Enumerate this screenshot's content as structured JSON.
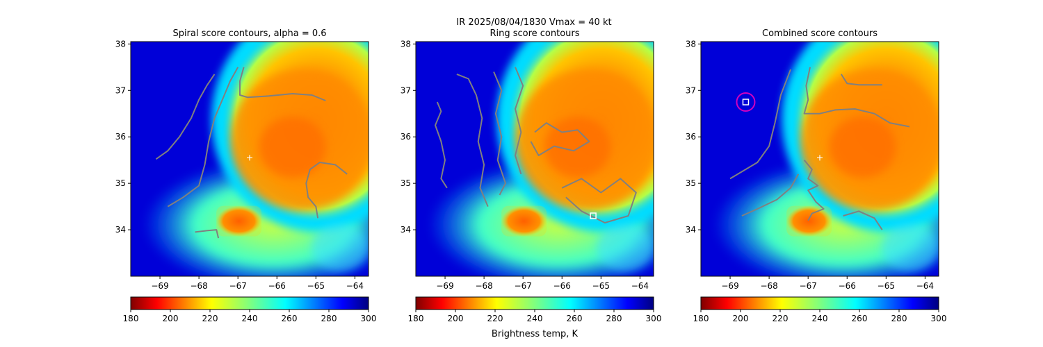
{
  "suptitle_line1": "IR  2025/08/04/1830    Vmax = 40 kt",
  "colorbar_label": "Brightness temp, K",
  "chart_data": [
    {
      "type": "heatmap",
      "title": "Spiral score contours, alpha =  0.6",
      "x_ticks": [
        -69,
        -68,
        -67,
        -66,
        -65,
        -64
      ],
      "y_ticks": [
        34,
        35,
        36,
        37,
        38
      ],
      "xlim": [
        -69.75,
        -63.65
      ],
      "ylim": [
        33.0,
        38.05
      ],
      "colorbar": {
        "ticks": [
          180,
          200,
          220,
          240,
          260,
          280,
          300
        ],
        "range": [
          180,
          300
        ],
        "colormap": "jet_r"
      },
      "center_marker": {
        "lon": -66.7,
        "lat": 35.55,
        "symbol": "+"
      },
      "contour_color": "#808080",
      "contours": [
        [
          [
            -69.1,
            35.52
          ],
          [
            -68.8,
            35.7
          ],
          [
            -68.5,
            36.0
          ],
          [
            -68.2,
            36.4
          ],
          [
            -68.0,
            36.8
          ],
          [
            -67.8,
            37.1
          ],
          [
            -67.6,
            37.35
          ]
        ],
        [
          [
            -68.8,
            34.5
          ],
          [
            -68.4,
            34.7
          ],
          [
            -68.0,
            34.95
          ],
          [
            -67.85,
            35.4
          ],
          [
            -67.75,
            35.9
          ],
          [
            -67.6,
            36.4
          ],
          [
            -67.4,
            36.8
          ],
          [
            -67.2,
            37.2
          ],
          [
            -67.0,
            37.5
          ]
        ],
        [
          [
            -66.85,
            37.5
          ],
          [
            -66.95,
            37.2
          ],
          [
            -66.95,
            36.9
          ],
          [
            -66.75,
            36.85
          ],
          [
            -66.2,
            36.88
          ],
          [
            -65.6,
            36.93
          ],
          [
            -65.1,
            36.9
          ],
          [
            -64.75,
            36.78
          ]
        ],
        [
          [
            -64.2,
            35.2
          ],
          [
            -64.5,
            35.4
          ],
          [
            -64.9,
            35.45
          ],
          [
            -65.15,
            35.3
          ],
          [
            -65.25,
            35.0
          ],
          [
            -65.2,
            34.7
          ],
          [
            -65.0,
            34.5
          ],
          [
            -64.95,
            34.25
          ]
        ],
        [
          [
            -68.1,
            33.95
          ],
          [
            -67.8,
            33.98
          ],
          [
            -67.55,
            34.0
          ],
          [
            -67.5,
            33.82
          ]
        ]
      ]
    },
    {
      "type": "heatmap",
      "title": "Ring score contours",
      "x_ticks": [
        -69,
        -68,
        -67,
        -66,
        -65,
        -64
      ],
      "y_ticks": [
        34,
        35,
        36,
        37,
        38
      ],
      "xlim": [
        -69.75,
        -63.65
      ],
      "ylim": [
        33.0,
        38.05
      ],
      "colorbar": {
        "ticks": [
          180,
          200,
          220,
          240,
          260,
          280,
          300
        ],
        "range": [
          180,
          300
        ],
        "colormap": "jet_r"
      },
      "square_marker": {
        "lon": -65.2,
        "lat": 34.3
      },
      "contour_color": "#808080",
      "contours": [
        [
          [
            -69.2,
            36.75
          ],
          [
            -69.1,
            36.55
          ],
          [
            -69.25,
            36.25
          ],
          [
            -69.1,
            35.9
          ],
          [
            -69.0,
            35.5
          ],
          [
            -69.1,
            35.1
          ],
          [
            -68.95,
            34.9
          ]
        ],
        [
          [
            -68.7,
            37.35
          ],
          [
            -68.4,
            37.25
          ],
          [
            -68.2,
            36.9
          ],
          [
            -68.05,
            36.4
          ],
          [
            -68.15,
            35.9
          ],
          [
            -68.0,
            35.4
          ],
          [
            -68.1,
            34.9
          ],
          [
            -67.9,
            34.5
          ]
        ],
        [
          [
            -67.75,
            37.4
          ],
          [
            -67.55,
            37.0
          ],
          [
            -67.7,
            36.5
          ],
          [
            -67.55,
            36.0
          ],
          [
            -67.65,
            35.5
          ],
          [
            -67.45,
            35.0
          ],
          [
            -67.6,
            34.75
          ]
        ],
        [
          [
            -67.2,
            37.5
          ],
          [
            -67.0,
            37.1
          ],
          [
            -67.2,
            36.6
          ],
          [
            -67.05,
            36.1
          ],
          [
            -67.2,
            35.6
          ],
          [
            -67.05,
            35.2
          ]
        ],
        [
          [
            -66.7,
            36.1
          ],
          [
            -66.4,
            36.3
          ],
          [
            -66.0,
            36.1
          ],
          [
            -65.6,
            36.15
          ],
          [
            -65.3,
            35.9
          ],
          [
            -65.7,
            35.7
          ],
          [
            -66.2,
            35.8
          ],
          [
            -66.6,
            35.6
          ],
          [
            -66.8,
            35.9
          ]
        ],
        [
          [
            -66.0,
            34.9
          ],
          [
            -65.5,
            35.1
          ],
          [
            -65.0,
            34.8
          ],
          [
            -64.5,
            35.1
          ],
          [
            -64.1,
            34.8
          ],
          [
            -64.3,
            34.3
          ],
          [
            -64.9,
            34.15
          ],
          [
            -65.5,
            34.4
          ],
          [
            -65.9,
            34.7
          ]
        ]
      ]
    },
    {
      "type": "heatmap",
      "title": "Combined score contours",
      "x_ticks": [
        -69,
        -68,
        -67,
        -66,
        -65,
        -64
      ],
      "y_ticks": [
        34,
        35,
        36,
        37,
        38
      ],
      "xlim": [
        -69.75,
        -63.65
      ],
      "ylim": [
        33.0,
        38.05
      ],
      "colorbar": {
        "ticks": [
          180,
          200,
          220,
          240,
          260,
          280,
          300
        ],
        "range": [
          180,
          300
        ],
        "colormap": "jet_r"
      },
      "center_marker": {
        "lon": -66.7,
        "lat": 35.55,
        "symbol": "+"
      },
      "square_marker": {
        "lon": -68.6,
        "lat": 36.75
      },
      "circle_marker": {
        "lon": -68.6,
        "lat": 36.75,
        "color": "#d000c0"
      },
      "contour_color": "#808080",
      "contours": [
        [
          [
            -69.0,
            35.1
          ],
          [
            -68.7,
            35.25
          ],
          [
            -68.3,
            35.45
          ],
          [
            -68.0,
            35.8
          ],
          [
            -67.85,
            36.3
          ],
          [
            -67.7,
            36.9
          ],
          [
            -67.45,
            37.45
          ]
        ],
        [
          [
            -68.7,
            34.3
          ],
          [
            -68.3,
            34.45
          ],
          [
            -67.8,
            34.65
          ],
          [
            -67.45,
            34.9
          ],
          [
            -67.25,
            35.2
          ]
        ],
        [
          [
            -66.95,
            37.5
          ],
          [
            -67.05,
            37.1
          ],
          [
            -67.0,
            36.8
          ],
          [
            -67.1,
            36.5
          ],
          [
            -66.7,
            36.5
          ],
          [
            -66.3,
            36.58
          ],
          [
            -65.8,
            36.6
          ],
          [
            -65.3,
            36.5
          ],
          [
            -64.9,
            36.3
          ],
          [
            -64.4,
            36.22
          ]
        ],
        [
          [
            -66.15,
            37.35
          ],
          [
            -66.0,
            37.15
          ],
          [
            -65.7,
            37.12
          ],
          [
            -65.1,
            37.12
          ]
        ],
        [
          [
            -67.1,
            35.5
          ],
          [
            -66.9,
            35.3
          ],
          [
            -67.0,
            35.1
          ],
          [
            -66.75,
            34.95
          ],
          [
            -67.0,
            34.85
          ],
          [
            -66.8,
            34.6
          ],
          [
            -66.6,
            34.45
          ],
          [
            -66.9,
            34.35
          ],
          [
            -67.0,
            34.2
          ]
        ],
        [
          [
            -66.1,
            34.3
          ],
          [
            -65.7,
            34.4
          ],
          [
            -65.3,
            34.25
          ],
          [
            -65.1,
            34.0
          ]
        ]
      ]
    }
  ]
}
